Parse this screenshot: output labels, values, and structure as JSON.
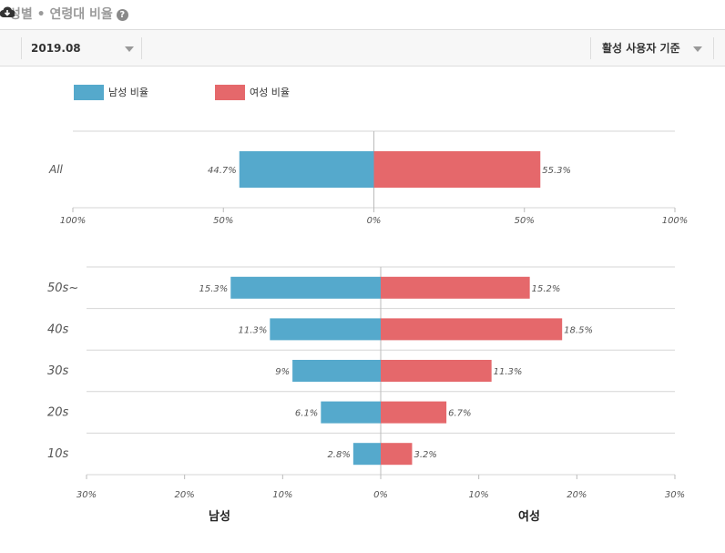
{
  "header": {
    "title": "성별 • 연령대 비율",
    "help_icon": "?",
    "download_icon": "cloud-download-icon"
  },
  "toolbar": {
    "date": "2019.08",
    "basis": "활성 사용자 기준"
  },
  "legend": {
    "male": "남성 비율",
    "female": "여성 비율"
  },
  "colors": {
    "male": "#55a9cc",
    "female": "#e5686b"
  },
  "chart_data": [
    {
      "type": "bar",
      "orientation": "horizontal-diverging",
      "categories": [
        "All"
      ],
      "series": [
        {
          "name": "남성 비율",
          "values": [
            44.7
          ]
        },
        {
          "name": "여성 비율",
          "values": [
            55.3
          ]
        }
      ],
      "xlim": [
        -100,
        100
      ],
      "ticks": [
        "100%",
        "50%",
        "0%",
        "50%",
        "100%"
      ],
      "grid": true
    },
    {
      "type": "bar",
      "orientation": "horizontal-diverging",
      "categories": [
        "50s~",
        "40s",
        "30s",
        "20s",
        "10s"
      ],
      "series": [
        {
          "name": "남성",
          "values": [
            15.3,
            11.3,
            9,
            6.1,
            2.8
          ]
        },
        {
          "name": "여성",
          "values": [
            15.2,
            18.5,
            11.3,
            6.7,
            3.2
          ]
        }
      ],
      "xlim": [
        -30,
        30
      ],
      "ticks": [
        "30%",
        "20%",
        "10%",
        "0%",
        "10%",
        "20%",
        "30%"
      ],
      "xlabel_left": "남성",
      "xlabel_right": "여성",
      "grid": true
    }
  ]
}
